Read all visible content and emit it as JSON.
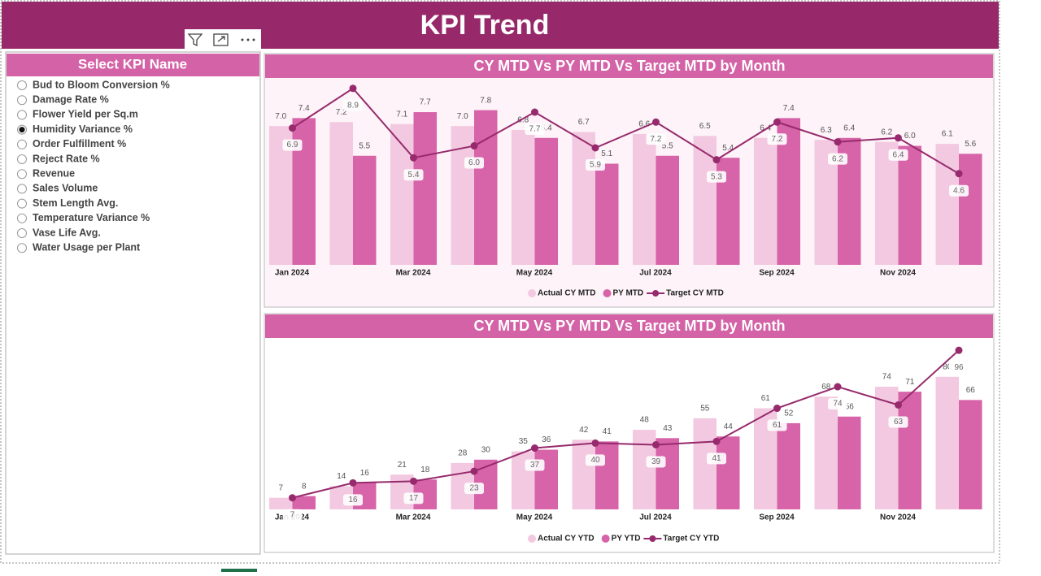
{
  "title": "KPI Trend",
  "slicer": {
    "title": "Select KPI Name",
    "selected": "Humidity Variance %",
    "options": [
      "Bud to Bloom Conversion %",
      "Damage Rate %",
      "Flower Yield per Sq.m",
      "Humidity Variance %",
      "Order Fulfillment %",
      "Reject Rate %",
      "Revenue",
      "Sales Volume",
      "Stem Length Avg.",
      "Temperature Variance %",
      "Vase Life Avg.",
      "Water Usage per Plant"
    ]
  },
  "chart_data": [
    {
      "type": "combo",
      "title": "CY MTD Vs PY MTD Vs Target MTD by Month",
      "categories": [
        "Jan 2024",
        null,
        "Mar 2024",
        null,
        "May 2024",
        null,
        "Jul 2024",
        null,
        "Sep 2024",
        null,
        "Nov 2024",
        null
      ],
      "ylim": [
        0,
        9.3
      ],
      "series": [
        {
          "name": "Actual CY MTD",
          "type": "bar",
          "color": "#f2c9e0",
          "values": [
            7.0,
            7.2,
            7.1,
            7.0,
            6.8,
            6.7,
            6.6,
            6.5,
            6.4,
            6.3,
            6.2,
            6.1
          ],
          "value_labels": [
            "7.0",
            "7.2",
            "7.1",
            "7.0",
            "6.8",
            "6.7",
            "6.6",
            "6.5",
            "6.4",
            "6.3",
            "6.2",
            "6.1"
          ]
        },
        {
          "name": "PY MTD",
          "type": "bar",
          "color": "#d763a8",
          "values": [
            7.4,
            5.5,
            7.7,
            7.8,
            6.4,
            5.1,
            5.5,
            5.4,
            7.4,
            6.4,
            6.0,
            5.6
          ],
          "value_labels": [
            "7.4",
            "5.5",
            "7.7",
            "7.8",
            "6.4",
            "5.1",
            "5.5",
            "5.4",
            "7.4",
            "6.4",
            "6.0",
            "5.6"
          ]
        },
        {
          "name": "Target CY MTD",
          "type": "line",
          "color": "#962a6c",
          "values": [
            6.9,
            8.9,
            5.4,
            6.0,
            7.7,
            5.9,
            7.2,
            5.3,
            7.2,
            6.2,
            6.4,
            4.6
          ],
          "value_labels": [
            "6.9",
            "8.9",
            "5.4",
            "6.0",
            "7.7",
            "5.9",
            "7.2",
            "5.3",
            "7.2",
            "6.2",
            "6.4",
            "4.6"
          ]
        }
      ]
    },
    {
      "type": "combo",
      "title": "CY MTD Vs PY MTD Vs Target MTD by Month",
      "categories": [
        "Jan 2024",
        null,
        "Mar 2024",
        null,
        "May 2024",
        null,
        "Jul 2024",
        null,
        "Sep 2024",
        null,
        "Nov 2024",
        null
      ],
      "ylim": [
        0,
        100
      ],
      "series": [
        {
          "name": "Actual CY YTD",
          "type": "bar",
          "color": "#f2c9e0",
          "values": [
            7,
            14,
            21,
            28,
            35,
            42,
            48,
            55,
            61,
            68,
            74,
            80
          ]
        },
        {
          "name": "PY YTD",
          "type": "bar",
          "color": "#d763a8",
          "values": [
            8,
            16,
            18,
            30,
            36,
            41,
            43,
            44,
            52,
            56,
            71,
            66
          ]
        },
        {
          "name": "Target CY YTD",
          "type": "line",
          "color": "#962a6c",
          "values": [
            7,
            16,
            17,
            23,
            37,
            40,
            39,
            41,
            61,
            74,
            63,
            96
          ]
        }
      ]
    }
  ]
}
